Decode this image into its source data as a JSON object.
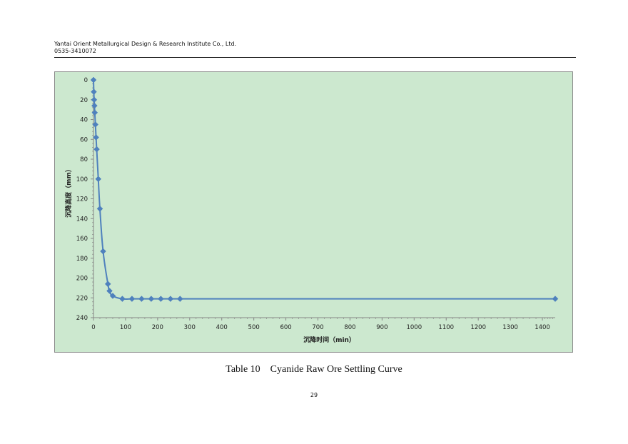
{
  "header": {
    "company": "Yantai Orient Metallurgical Design & Research Institute Co., Ltd.",
    "phone": "0535-3410072"
  },
  "caption": "Table 10    Cyanide Raw Ore Settling Curve",
  "page_number": "29",
  "colors": {
    "plot_background": "#cce8cf",
    "series": "#4f81bd",
    "axis": "#868686"
  },
  "chart_data": {
    "type": "scatter",
    "xlabel": "沉降时间（min）",
    "ylabel": "沉降高度（mm）",
    "xlim": [
      0,
      1440
    ],
    "ylim": [
      0,
      240
    ],
    "y_reversed": true,
    "x_ticks": [
      0,
      100,
      200,
      300,
      400,
      500,
      600,
      700,
      800,
      900,
      1000,
      1100,
      1200,
      1300,
      1400
    ],
    "y_ticks": [
      0,
      20,
      40,
      60,
      80,
      100,
      120,
      140,
      160,
      180,
      200,
      220,
      240
    ],
    "grid": false,
    "legend": "none",
    "series": [
      {
        "marker": "diamond",
        "line": "smooth",
        "x": [
          0,
          1,
          2,
          3,
          4,
          6,
          8,
          10,
          15,
          20,
          30,
          45,
          50,
          60,
          90,
          120,
          150,
          180,
          210,
          240,
          270,
          1440
        ],
        "y": [
          0,
          12,
          20,
          26,
          33,
          45,
          58,
          70,
          100,
          130,
          173,
          206,
          213,
          218,
          221,
          221,
          221,
          221,
          221,
          221,
          221,
          221
        ]
      }
    ]
  }
}
